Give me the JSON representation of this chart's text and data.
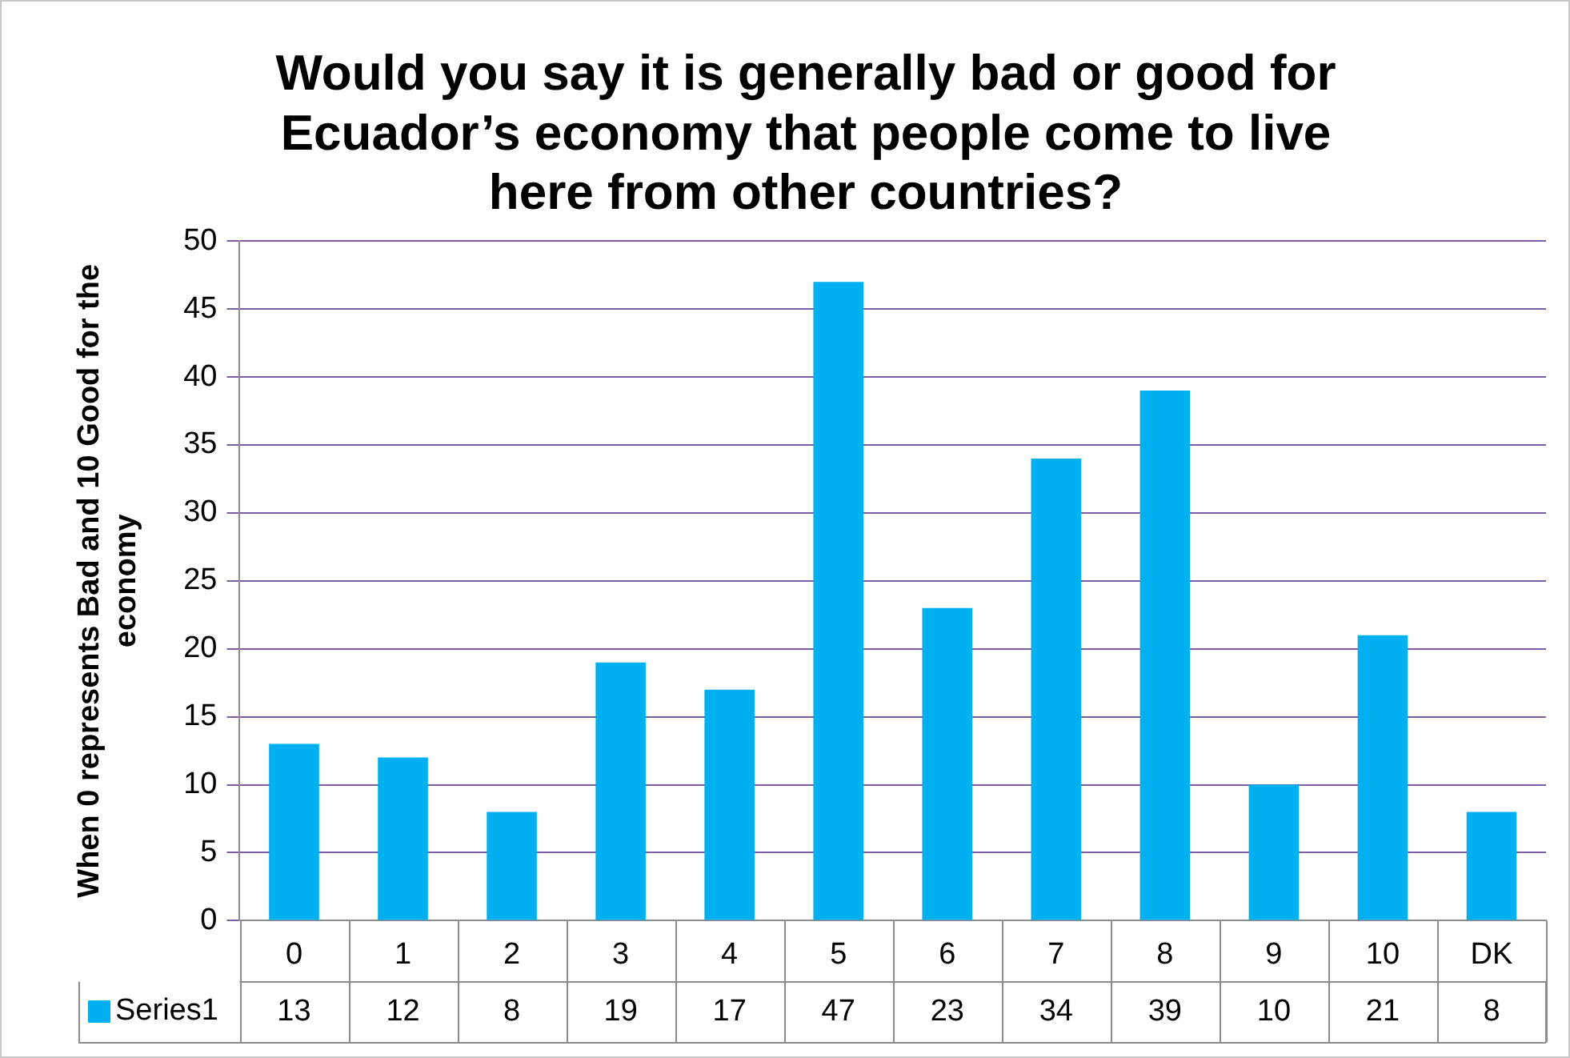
{
  "chart_data": {
    "type": "bar",
    "title": "Would you say it is generally bad or good for Ecuador’s economy that people come to live here from other countries?",
    "ylabel": "When 0 represents Bad and 10 Good for the economy",
    "categories": [
      "0",
      "1",
      "2",
      "3",
      "4",
      "5",
      "6",
      "7",
      "8",
      "9",
      "10",
      "DK"
    ],
    "series": [
      {
        "name": "Series1",
        "color": "#00b0f0",
        "values": [
          13,
          12,
          8,
          19,
          17,
          47,
          23,
          34,
          39,
          10,
          21,
          8
        ]
      }
    ],
    "ylim": [
      0,
      50
    ],
    "yticks": [
      0,
      5,
      10,
      15,
      20,
      25,
      30,
      35,
      40,
      45,
      50
    ],
    "grid": "y",
    "legend": "bottom",
    "data_labels": true
  }
}
